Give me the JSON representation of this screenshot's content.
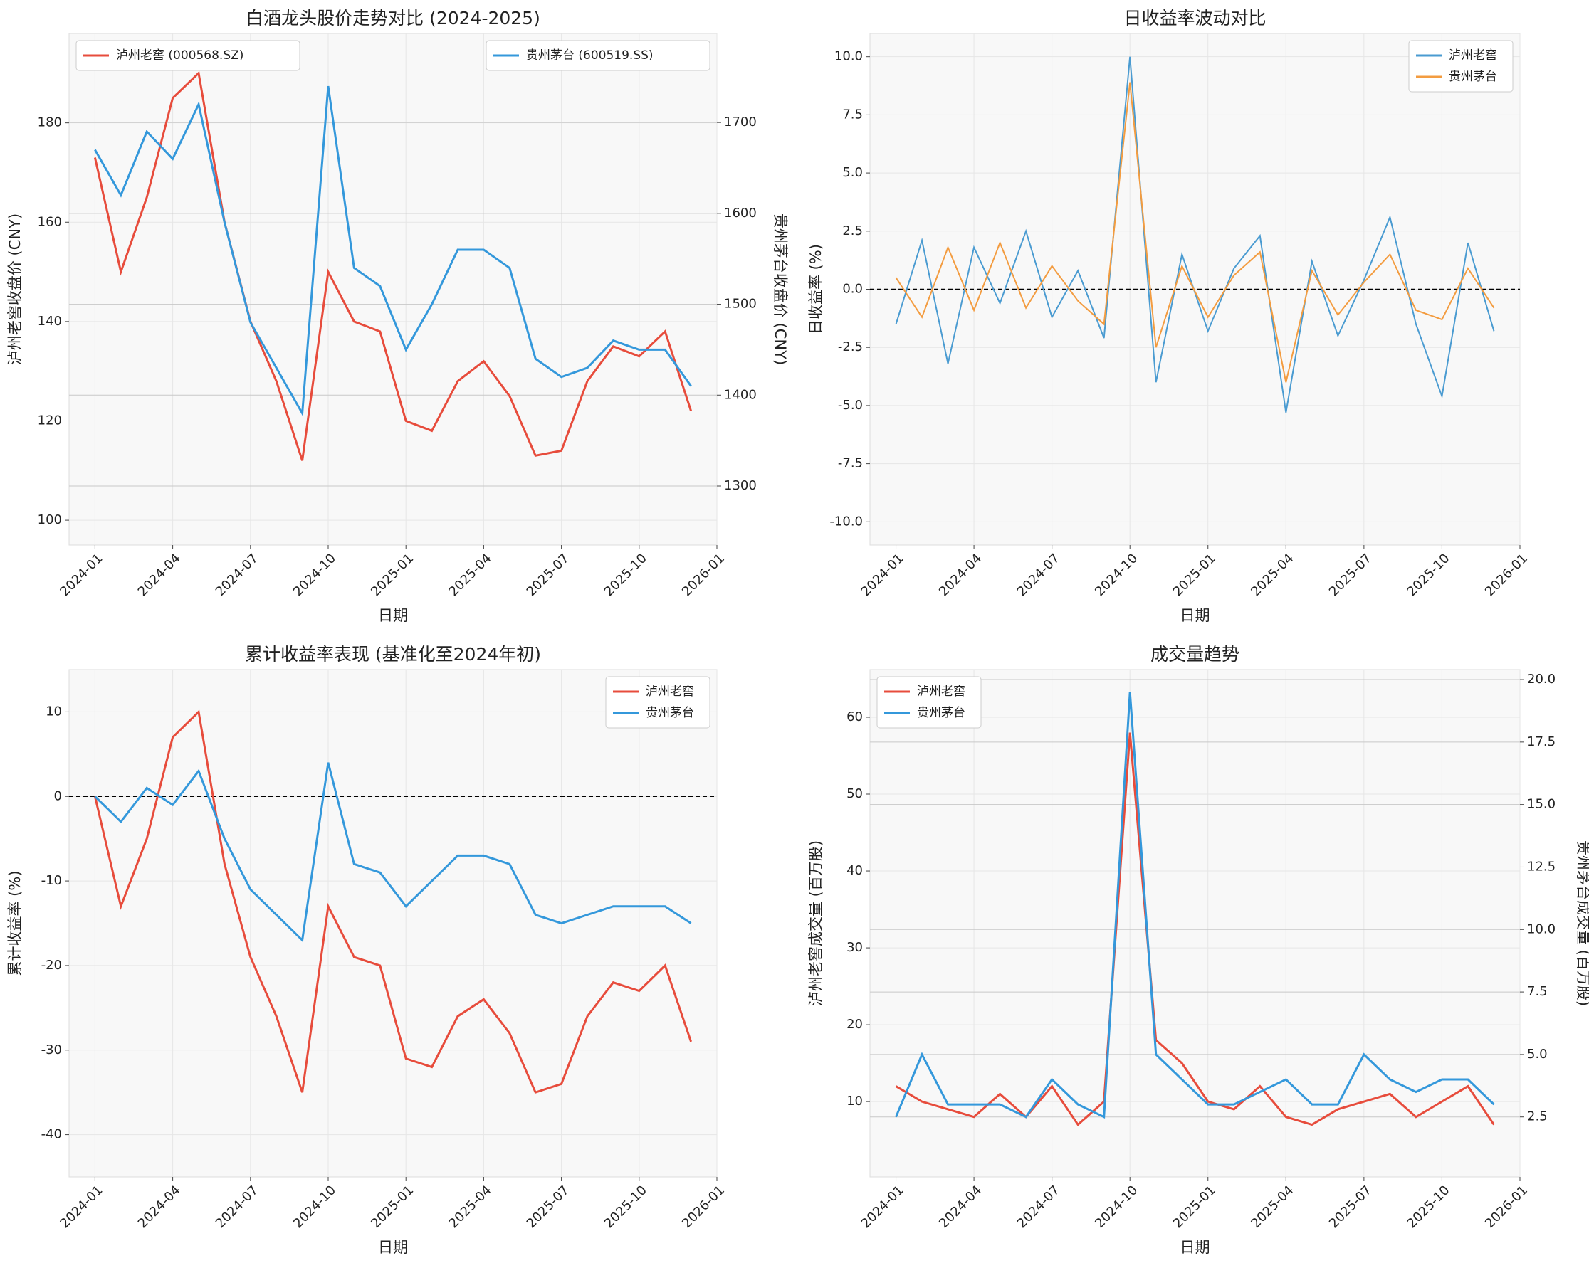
{
  "chart_data": [
    {
      "type": "line",
      "title": "白酒龙头股价走势对比 (2024-2025)",
      "xlabel": "日期",
      "ylabel": "泸州老窖收盘价 (CNY)",
      "y2label": "贵州茅台收盘价 (CNY)",
      "x": [
        "2024-01",
        "2024-02",
        "2024-03",
        "2024-04",
        "2024-05",
        "2024-06",
        "2024-07",
        "2024-08",
        "2024-09",
        "2024-10",
        "2024-11",
        "2024-12",
        "2025-01",
        "2025-02",
        "2025-03",
        "2025-04",
        "2025-05",
        "2025-06",
        "2025-07",
        "2025-08",
        "2025-09",
        "2025-10",
        "2025-11",
        "2025-12"
      ],
      "xlim": [
        "2023-12",
        "2026-01"
      ],
      "xticks": [
        "2024-01",
        "2024-04",
        "2024-07",
        "2024-10",
        "2025-01",
        "2025-04",
        "2025-07",
        "2025-10",
        "2026-01"
      ],
      "ylim": [
        95,
        198
      ],
      "yticks": [
        100,
        120,
        140,
        160,
        180
      ],
      "y2lim": [
        1235,
        1798
      ],
      "y2ticks": [
        1300,
        1400,
        1500,
        1600,
        1700
      ],
      "grid": true,
      "series": [
        {
          "name": "泸州老窖 (000568.SZ)",
          "color": "#e74c3c",
          "legend": "upper left",
          "values": [
            173,
            150,
            165,
            185,
            190,
            160,
            140,
            128,
            112,
            150,
            140,
            138,
            120,
            118,
            128,
            132,
            125,
            113,
            114,
            128,
            135,
            133,
            138,
            122
          ]
        },
        {
          "name": "贵州茅台 (600519.SS)",
          "color": "#3498db",
          "legend": "upper right",
          "axis": "y2",
          "values": [
            1670,
            1620,
            1690,
            1660,
            1720,
            1590,
            1480,
            1430,
            1380,
            1740,
            1540,
            1520,
            1450,
            1500,
            1560,
            1560,
            1540,
            1440,
            1420,
            1430,
            1460,
            1450,
            1450,
            1410
          ]
        }
      ]
    },
    {
      "type": "line",
      "title": "日收益率波动对比",
      "xlabel": "日期",
      "ylabel": "日收益率 (%)",
      "x": [
        "2024-01",
        "2024-02",
        "2024-03",
        "2024-04",
        "2024-05",
        "2024-06",
        "2024-07",
        "2024-08",
        "2024-09",
        "2024-10",
        "2024-11",
        "2024-12",
        "2025-01",
        "2025-02",
        "2025-03",
        "2025-04",
        "2025-05",
        "2025-06",
        "2025-07",
        "2025-08",
        "2025-09",
        "2025-10",
        "2025-11",
        "2025-12"
      ],
      "xlim": [
        "2023-12",
        "2026-01"
      ],
      "xticks": [
        "2024-01",
        "2024-04",
        "2024-07",
        "2024-10",
        "2025-01",
        "2025-04",
        "2025-07",
        "2025-10",
        "2026-01"
      ],
      "ylim": [
        -11,
        11
      ],
      "yticks": [
        {
          "value": -10,
          "label": "-10.0"
        },
        -7.5,
        {
          "value": -5,
          "label": "-5.0"
        },
        -2.5,
        {
          "value": 0,
          "label": "0.0"
        },
        2.5,
        {
          "value": 5,
          "label": "5.0"
        },
        7.5,
        {
          "value": 10,
          "label": "10.0"
        }
      ],
      "grid": true,
      "hline": 0,
      "series": [
        {
          "name": "泸州老窖",
          "color": "#4a9bd1",
          "legend": "upper right",
          "values": [
            -1.5,
            2.1,
            -3.2,
            1.8,
            -0.6,
            2.5,
            -1.2,
            0.8,
            -2.1,
            10.0,
            -4.0,
            1.5,
            -1.8,
            0.9,
            2.3,
            -5.3,
            1.2,
            -2.0,
            0.4,
            3.1,
            -1.5,
            -4.6,
            2.0,
            -1.8
          ]
        },
        {
          "name": "贵州茅台",
          "color": "#f39c40",
          "legend": "upper right",
          "values": [
            0.5,
            -1.2,
            1.8,
            -0.9,
            2.0,
            -0.8,
            1.0,
            -0.5,
            -1.5,
            8.9,
            -2.5,
            1.0,
            -1.2,
            0.6,
            1.6,
            -4.0,
            0.8,
            -1.1,
            0.3,
            1.5,
            -0.9,
            -1.3,
            0.9,
            -0.8
          ]
        }
      ]
    },
    {
      "type": "line",
      "title": "累计收益率表现 (基准化至2024年初)",
      "xlabel": "日期",
      "ylabel": "累计收益率 (%)",
      "x": [
        "2024-01",
        "2024-02",
        "2024-03",
        "2024-04",
        "2024-05",
        "2024-06",
        "2024-07",
        "2024-08",
        "2024-09",
        "2024-10",
        "2024-11",
        "2024-12",
        "2025-01",
        "2025-02",
        "2025-03",
        "2025-04",
        "2025-05",
        "2025-06",
        "2025-07",
        "2025-08",
        "2025-09",
        "2025-10",
        "2025-11",
        "2025-12"
      ],
      "xlim": [
        "2023-12",
        "2026-01"
      ],
      "xticks": [
        "2024-01",
        "2024-04",
        "2024-07",
        "2024-10",
        "2025-01",
        "2025-04",
        "2025-07",
        "2025-10",
        "2026-01"
      ],
      "ylim": [
        -45,
        15
      ],
      "yticks": [
        -40,
        -30,
        -20,
        -10,
        0,
        10
      ],
      "grid": true,
      "hline": 0,
      "series": [
        {
          "name": "泸州老窖",
          "color": "#e74c3c",
          "legend": "upper right",
          "values": [
            0,
            -13,
            -5,
            7,
            10,
            -8,
            -19,
            -26,
            -35,
            -13,
            -19,
            -20,
            -31,
            -32,
            -26,
            -24,
            -28,
            -35,
            -34,
            -26,
            -22,
            -23,
            -20,
            -29
          ]
        },
        {
          "name": "贵州茅台",
          "color": "#3498db",
          "legend": "upper right",
          "values": [
            0,
            -3,
            1,
            -1,
            3,
            -5,
            -11,
            -14,
            -17,
            4,
            -8,
            -9,
            -13,
            -10,
            -7,
            -7,
            -8,
            -14,
            -15,
            -14,
            -13,
            -13,
            -13,
            -15
          ]
        }
      ]
    },
    {
      "type": "line",
      "title": "成交量趋势",
      "xlabel": "日期",
      "ylabel": "泸州老窖成交量 (百万股)",
      "y2label": "贵州茅台成交量 (百万股)",
      "x": [
        "2024-01",
        "2024-02",
        "2024-03",
        "2024-04",
        "2024-05",
        "2024-06",
        "2024-07",
        "2024-08",
        "2024-09",
        "2024-10",
        "2024-11",
        "2024-12",
        "2025-01",
        "2025-02",
        "2025-03",
        "2025-04",
        "2025-05",
        "2025-06",
        "2025-07",
        "2025-08",
        "2025-09",
        "2025-10",
        "2025-11",
        "2025-12"
      ],
      "xlim": [
        "2023-12",
        "2026-01"
      ],
      "xticks": [
        "2024-01",
        "2024-04",
        "2024-07",
        "2024-10",
        "2025-01",
        "2025-04",
        "2025-07",
        "2025-10",
        "2026-01"
      ],
      "ylim": [
        0.2,
        66.2
      ],
      "yticks": [
        10,
        20,
        30,
        40,
        50,
        60
      ],
      "y2lim": [
        0.1,
        20.4
      ],
      "y2ticks": [
        2.5,
        {
          "value": 5,
          "label": "5.0"
        },
        7.5,
        {
          "value": 10,
          "label": "10.0"
        },
        12.5,
        {
          "value": 15,
          "label": "15.0"
        },
        17.5,
        {
          "value": 20,
          "label": "20.0"
        }
      ],
      "grid": true,
      "series": [
        {
          "name": "泸州老窖",
          "color": "#e74c3c",
          "legend": "upper left",
          "values": [
            12,
            10,
            9,
            8,
            11,
            8,
            12,
            7,
            10,
            58,
            18,
            15,
            10,
            9,
            12,
            8,
            7,
            9,
            10,
            11,
            8,
            10,
            12,
            7
          ]
        },
        {
          "name": "贵州茅台",
          "color": "#3498db",
          "legend": "upper left",
          "axis": "y2",
          "values": [
            2.5,
            5,
            3,
            3,
            3,
            2.5,
            4,
            3,
            2.5,
            19.5,
            5,
            4,
            3,
            3,
            3.5,
            4,
            3,
            3,
            5,
            4,
            3.5,
            4,
            4,
            3
          ]
        }
      ]
    }
  ]
}
